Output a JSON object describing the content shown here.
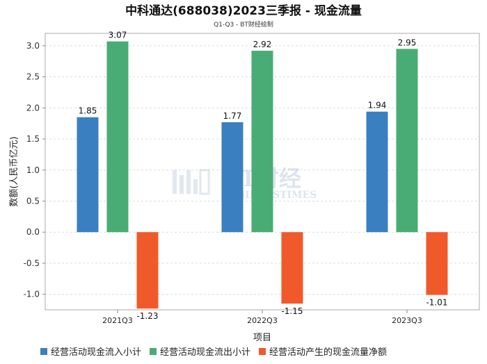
{
  "chart_data": {
    "type": "bar",
    "title": "中科通达(688038)2023三季报 - 现金流量",
    "subtitle": "Q1-Q3 - BT财经绘制",
    "xlabel": "项目",
    "ylabel": "数额(人民币亿元)",
    "categories": [
      "2021Q3",
      "2022Q3",
      "2023Q3"
    ],
    "ylim": [
      -1.25,
      3.2
    ],
    "yticks": [
      -1.0,
      -0.5,
      0.0,
      0.5,
      1.0,
      1.5,
      2.0,
      2.5,
      3.0
    ],
    "ytick_labels": [
      "-1.0",
      "-0.5",
      "0.0",
      "0.5",
      "1.0",
      "1.5",
      "2.0",
      "2.5",
      "3.0"
    ],
    "grid": true,
    "legend_position": "bottom",
    "series": [
      {
        "name": "经营活动现金流入小计",
        "color": "#3a80c0",
        "values": [
          1.85,
          1.77,
          1.94
        ],
        "labels": [
          "1.85",
          "1.77",
          "1.94"
        ]
      },
      {
        "name": "经营活动现金流出小计",
        "color": "#4aac75",
        "values": [
          3.07,
          2.92,
          2.95
        ],
        "labels": [
          "3.07",
          "2.92",
          "2.95"
        ]
      },
      {
        "name": "经营活动产生的现金流量净额",
        "color": "#f05a2a",
        "values": [
          -1.23,
          -1.15,
          -1.01
        ],
        "labels": [
          "-1.23",
          "-1.15",
          "-1.01"
        ]
      }
    ]
  },
  "watermark": {
    "line1": "BT财经",
    "line2": "BUSINESSTIMES"
  }
}
